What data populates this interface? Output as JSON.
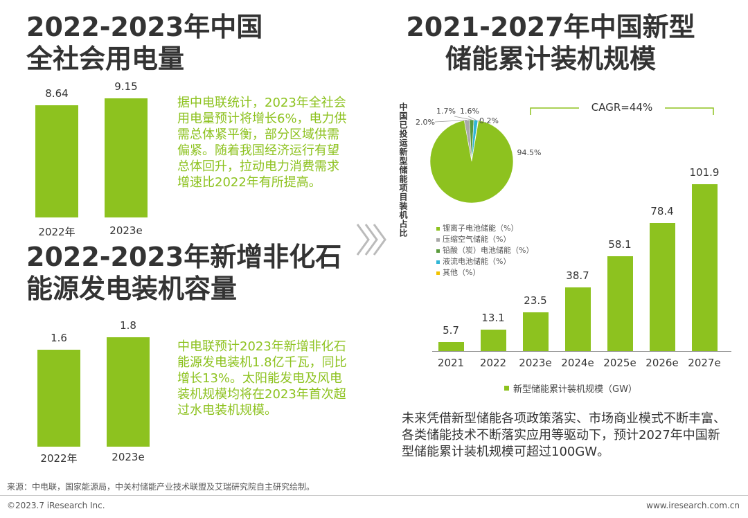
{
  "left_top": {
    "title_line1": "2022-2023年中国",
    "title_line2": "全社会用电量",
    "description": "据中电联统计，2023年全社会用电量预计将增长6%，电力供需总体紧平衡，部分区域供需偏紧。随着我国经济运行有望总体回升，拉动电力消费需求增速比2022年有所提高。"
  },
  "left_bottom": {
    "title_line1": "2022-2023年新增非化石",
    "title_line2": "能源发电装机容量",
    "description": "中电联预计2023年新增非化石能源发电装机1.8亿千瓦，同比增长13%。太阳能发电及风电装机规模均将在2023年首次超过水电装机规模。"
  },
  "right": {
    "title_line1": "2021-2027年中国新型",
    "title_line2": "储能累计装机规模",
    "cagr": "CAGR=44%",
    "pie_vertical_label": "中国已投运新型储能项目装机占比",
    "description": "未来凭借新型储能各项政策落实、市场商业模式不断丰富、各类储能技术不断落实应用等驱动下，预计2027年中国新型储能累计装机规模可超过100GW。"
  },
  "chart_data": [
    {
      "type": "bar",
      "categories": [
        "2022年",
        "2023e"
      ],
      "values": [
        8.64,
        9.15
      ],
      "title": "2022-2023年中国全社会用电量",
      "ylim": [
        0,
        9.15
      ]
    },
    {
      "type": "bar",
      "categories": [
        "2022年",
        "2023e"
      ],
      "values": [
        1.6,
        1.8
      ],
      "title": "2022-2023年新增非化石能源发电装机容量",
      "ylim": [
        0,
        1.8
      ]
    },
    {
      "type": "pie",
      "labels": [
        "锂离子电池储能（%）",
        "压缩空气储能（%）",
        "铅酸（炭）电池储能（%）",
        "液流电池储能（%）",
        "其他（%）"
      ],
      "values": [
        94.5,
        2.0,
        1.7,
        1.6,
        0.2
      ],
      "value_labels": [
        "94.5%",
        "2.0%",
        "1.7%",
        "1.6%",
        "0.2%"
      ],
      "colors": [
        "#8dc21f",
        "#a9a9a9",
        "#5a9b3c",
        "#31b6d6",
        "#f2c300"
      ]
    },
    {
      "type": "bar",
      "categories": [
        "2021",
        "2022",
        "2023e",
        "2024e",
        "2025e",
        "2026e",
        "2027e"
      ],
      "values": [
        5.7,
        13.1,
        23.5,
        38.7,
        58.1,
        78.4,
        101.9
      ],
      "series_name": "新型储能累计装机规模（GW）",
      "ylim": [
        0,
        101.9
      ]
    }
  ],
  "footer": {
    "source": "来源：中电联，国家能源局，中关村储能产业技术联盟及艾瑞研究院自主研究绘制。",
    "copyright": "©2023.7 iResearch Inc.",
    "website": "www.iresearch.com.cn"
  }
}
